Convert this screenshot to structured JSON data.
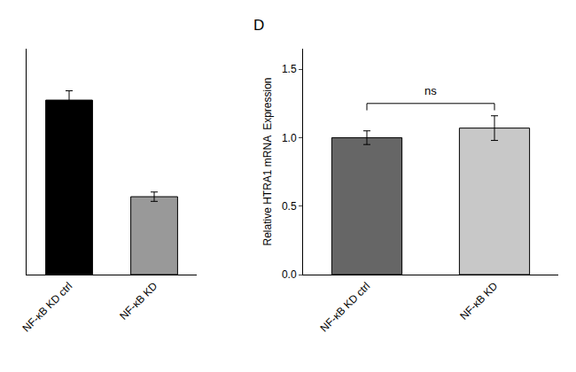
{
  "chart_data": [
    {
      "type": "bar",
      "categories": [
        "NF-κB KD ctrl",
        "NF-κB KD"
      ],
      "values": [
        1.12,
        0.5
      ],
      "errors": [
        0.06,
        0.03
      ],
      "colors": [
        "#000000",
        "#999999"
      ],
      "ylim": [
        0,
        1.45
      ],
      "grid": false,
      "tick_labels": "x"
    },
    {
      "type": "bar",
      "categories": [
        "NF-κB KD ctrl",
        "NF-κB KD"
      ],
      "values": [
        1.0,
        1.07
      ],
      "errors": [
        0.05,
        0.09
      ],
      "colors": [
        "#666666",
        "#c8c8c8"
      ],
      "ylabel": "Relative HTRA1 mRNA  Expression",
      "ylim": [
        0,
        1.65
      ],
      "yticks": [
        {
          "value": 0.0,
          "label": "0.0"
        },
        0.5,
        {
          "value": 1.0,
          "label": "1.0"
        },
        1.5
      ],
      "grid": false,
      "annotations": [
        {
          "text": "D"
        },
        {
          "text": "ns",
          "y": 1.28,
          "bracket_y": 1.25,
          "between": [
            "NF-κB KD ctrl",
            "NF-κB KD"
          ]
        }
      ]
    }
  ]
}
